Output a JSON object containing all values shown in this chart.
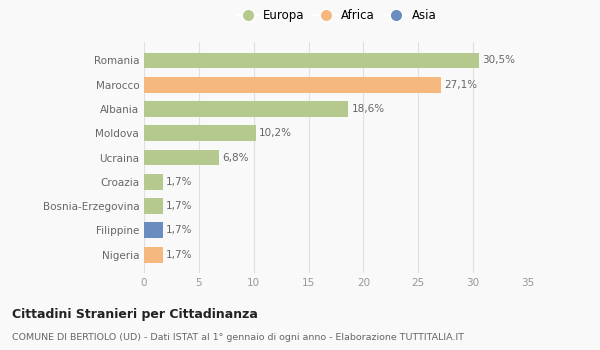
{
  "categories": [
    "Romania",
    "Marocco",
    "Albania",
    "Moldova",
    "Ucraina",
    "Croazia",
    "Bosnia-Erzegovina",
    "Filippine",
    "Nigeria"
  ],
  "values": [
    30.5,
    27.1,
    18.6,
    10.2,
    6.8,
    1.7,
    1.7,
    1.7,
    1.7
  ],
  "colors": [
    "#b5c98e",
    "#f5b97f",
    "#b5c98e",
    "#b5c98e",
    "#b5c98e",
    "#b5c98e",
    "#b5c98e",
    "#6b8cbf",
    "#f5b97f"
  ],
  "labels": [
    "30,5%",
    "27,1%",
    "18,6%",
    "10,2%",
    "6,8%",
    "1,7%",
    "1,7%",
    "1,7%",
    "1,7%"
  ],
  "legend": [
    {
      "label": "Europa",
      "color": "#b5c98e"
    },
    {
      "label": "Africa",
      "color": "#f5b97f"
    },
    {
      "label": "Asia",
      "color": "#6b8cbf"
    }
  ],
  "xlim": [
    0,
    35
  ],
  "xticks": [
    0,
    5,
    10,
    15,
    20,
    25,
    30,
    35
  ],
  "title": "Cittadini Stranieri per Cittadinanza",
  "subtitle": "COMUNE DI BERTIOLO (UD) - Dati ISTAT al 1° gennaio di ogni anno - Elaborazione TUTTITALIA.IT",
  "background_color": "#f9f9f9",
  "grid_color": "#e0e0e0",
  "bar_height": 0.65,
  "label_fontsize": 7.5,
  "ytick_fontsize": 7.5,
  "xtick_fontsize": 7.5,
  "legend_fontsize": 8.5,
  "title_fontsize": 9,
  "subtitle_fontsize": 6.8
}
